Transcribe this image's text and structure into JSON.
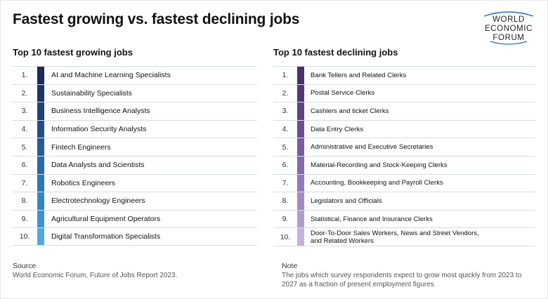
{
  "title": "Fastest growing vs. fastest declining jobs",
  "logo": {
    "line1": "WORLD",
    "line2": "ECONOMIC",
    "line3": "FORUM"
  },
  "growing": {
    "heading": "Top 10 fastest growing jobs",
    "items": [
      {
        "rank": "1.",
        "label": "AI and Machine Learning Specialists",
        "color": "#1c2a55"
      },
      {
        "rank": "2.",
        "label": "Sustainability Specialists",
        "color": "#1d3564"
      },
      {
        "rank": "3.",
        "label": "Business Intelligence Analysts",
        "color": "#1f4173"
      },
      {
        "rank": "4.",
        "label": "Information Security Analysts",
        "color": "#224e84"
      },
      {
        "rank": "5.",
        "label": "Fintech Engineers",
        "color": "#255c95"
      },
      {
        "rank": "6.",
        "label": "Data Analysts and Scientists",
        "color": "#2869a7"
      },
      {
        "rank": "7.",
        "label": "Robotics Engineers",
        "color": "#2c77b7"
      },
      {
        "rank": "8.",
        "label": "Electrotechnology Engineers",
        "color": "#3285c6"
      },
      {
        "rank": "9.",
        "label": "Agricultural Equipment Operators",
        "color": "#3d93d2"
      },
      {
        "rank": "10.",
        "label": "Digital Transformation Specialists",
        "color": "#56a6dc"
      }
    ]
  },
  "declining": {
    "heading": "Top 10 fastest declining jobs",
    "items": [
      {
        "rank": "1.",
        "label": "Bank Tellers and Related Clerks",
        "color": "#4a2f6b"
      },
      {
        "rank": "2.",
        "label": "Postal Service Clerks",
        "color": "#553675"
      },
      {
        "rank": "3.",
        "label": "Cashiers and ticket Clerks",
        "color": "#614183"
      },
      {
        "rank": "4.",
        "label": "Data Entry Clerks",
        "color": "#6d4c91"
      },
      {
        "rank": "5.",
        "label": "Administrative and Executive Secretaries",
        "color": "#7a5aa0"
      },
      {
        "rank": "6.",
        "label": "Material-Recording and Stock-Keeping Clerks",
        "color": "#8768ad"
      },
      {
        "rank": "7.",
        "label": "Accounting, Bookkeeping and Payroll Clerks",
        "color": "#9578b9"
      },
      {
        "rank": "8.",
        "label": "Legislators and Officials",
        "color": "#a389c4"
      },
      {
        "rank": "9.",
        "label": "Statistical, Finance and Insurance Clerks",
        "color": "#b29bcf"
      },
      {
        "rank": "10.",
        "label": "Door-To-Door Sales Workers, News and Street Vendors,",
        "label2": "and Related Workers",
        "color": "#c4b3dc"
      }
    ]
  },
  "source": {
    "heading": "Source",
    "text": "World Economic Forum, Future of Jobs Report 2023."
  },
  "note": {
    "heading": "Note",
    "line1": "The jobs which survey respondents expect to grow most quickly from 2023 to",
    "line2": "2027 as a fraction of present employment figures"
  }
}
